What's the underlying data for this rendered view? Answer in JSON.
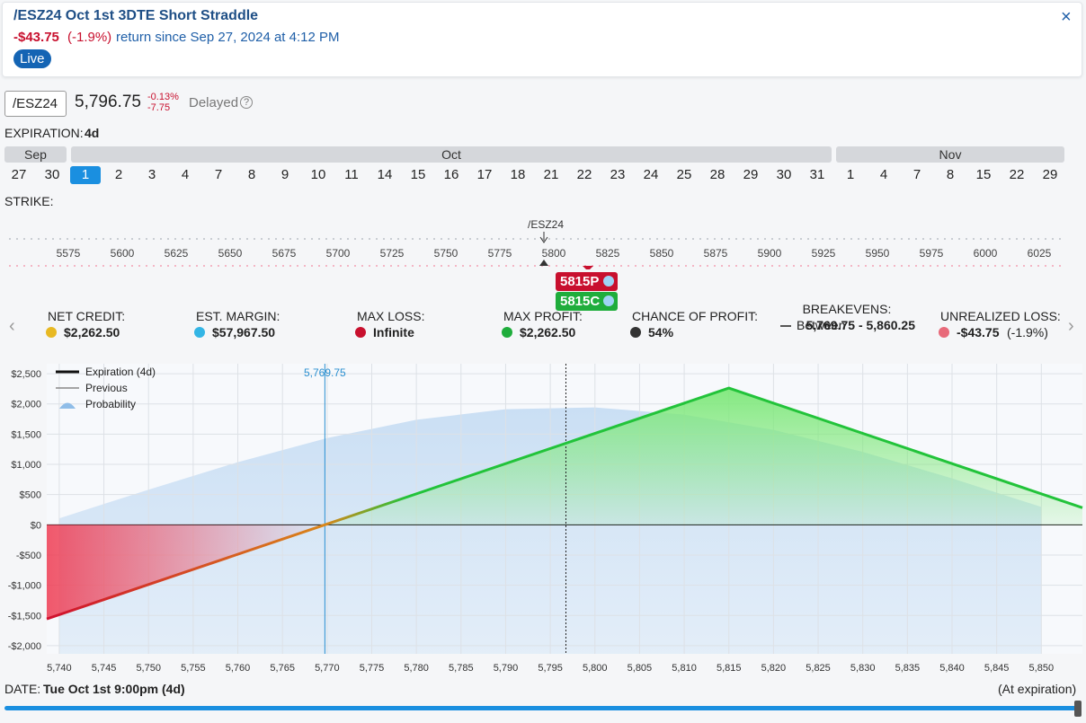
{
  "header": {
    "title": "/ESZ24 Oct 1st 3DTE Short Straddle",
    "return": "-$43.75",
    "return_pct": "(-1.9%)",
    "return_text": "return since Sep 27, 2024 at 4:12 PM",
    "status": "Live",
    "close": "×"
  },
  "quote": {
    "symbol": "/ESZ24",
    "price": "5,796.75",
    "change_pct": "-0.13%",
    "change": "-7.75",
    "delay": "Delayed",
    "help": "?"
  },
  "expiration": {
    "label": "EXPIRATION:",
    "value": "4d",
    "months": [
      {
        "name": "Sep",
        "dates": [
          "27",
          "30"
        ]
      },
      {
        "name": "Oct",
        "dates": [
          "1",
          "2",
          "3",
          "4",
          "7",
          "8",
          "9",
          "10",
          "11",
          "14",
          "15",
          "16",
          "17",
          "18",
          "21",
          "22",
          "23",
          "24",
          "25",
          "28",
          "29",
          "30",
          "31"
        ]
      },
      {
        "name": "Nov",
        "dates": [
          "1",
          "4",
          "7",
          "8",
          "15",
          "22",
          "29"
        ]
      }
    ]
  },
  "strike": {
    "label": "STRIKE:",
    "ticks": [
      "5575",
      "5600",
      "5625",
      "5650",
      "5675",
      "5700",
      "5725",
      "5750",
      "5775",
      "5800",
      "5825",
      "5850",
      "5875",
      "5900",
      "5925",
      "5950",
      "5975",
      "6000",
      "6025"
    ],
    "underlying": "/ESZ24",
    "legs": [
      "5815P",
      "5815C"
    ]
  },
  "stats": [
    {
      "label": "NET CREDIT:",
      "value": "$2,262.50"
    },
    {
      "label": "EST. MARGIN:",
      "value": "$57,967.50"
    },
    {
      "label": "MAX LOSS:",
      "value": "Infinite"
    },
    {
      "label": "MAX PROFIT:",
      "value": "$2,262.50"
    },
    {
      "label": "CHANCE OF PROFIT:",
      "value": "54%"
    },
    {
      "label": "BREAKEVENS:",
      "prefix": "Between",
      "value": "5,769.75 - 5,860.25"
    },
    {
      "label": "UNREALIZED LOSS:",
      "value": "-$43.75",
      "suffix": "(-1.9%)"
    }
  ],
  "chart_data": {
    "type": "line",
    "series": [
      {
        "name": "Expiration (4d)",
        "color": "#22c33a",
        "x": [
          5738.6,
          5769.75,
          5815,
          5854.6
        ],
        "values": [
          -1557.5,
          0,
          2262.5,
          282.5
        ]
      },
      {
        "name": "Previous",
        "color": "#888888",
        "x": [],
        "values": []
      },
      {
        "name": "Probability",
        "type": "area",
        "color": "#8fbde8",
        "x": [
          5740,
          5750,
          5760,
          5770,
          5780,
          5790,
          5800,
          5810,
          5820,
          5830,
          5840,
          5850
        ],
        "values": [
          108,
          581,
          1036,
          1435,
          1738,
          1913,
          1943,
          1823,
          1570,
          1206,
          769,
          296
        ]
      }
    ],
    "markers": [
      {
        "label": "5,769.75",
        "x": 5769.75,
        "color": "#2a8fd0"
      },
      {
        "x": 5796.75,
        "color": "#222222"
      }
    ],
    "xlim": [
      5738.6,
      5854.6
    ],
    "ylim": [
      -2135,
      2665
    ],
    "xticks": [
      {
        "value": 5740,
        "label": "5,740"
      },
      {
        "value": 5745,
        "label": "5,745"
      },
      {
        "value": 5750,
        "label": "5,750"
      },
      {
        "value": 5755,
        "label": "5,755"
      },
      {
        "value": 5760,
        "label": "5,760"
      },
      {
        "value": 5765,
        "label": "5,765"
      },
      {
        "value": 5770,
        "label": "5,770"
      },
      {
        "value": 5775,
        "label": "5,775"
      },
      {
        "value": 5780,
        "label": "5,780"
      },
      {
        "value": 5785,
        "label": "5,785"
      },
      {
        "value": 5790,
        "label": "5,790"
      },
      {
        "value": 5795,
        "label": "5,795"
      },
      {
        "value": 5800,
        "label": "5,800"
      },
      {
        "value": 5805,
        "label": "5,805"
      },
      {
        "value": 5810,
        "label": "5,810"
      },
      {
        "value": 5815,
        "label": "5,815"
      },
      {
        "value": 5820,
        "label": "5,820"
      },
      {
        "value": 5825,
        "label": "5,825"
      },
      {
        "value": 5830,
        "label": "5,830"
      },
      {
        "value": 5835,
        "label": "5,835"
      },
      {
        "value": 5840,
        "label": "5,840"
      },
      {
        "value": 5845,
        "label": "5,845"
      },
      {
        "value": 5850,
        "label": "5,850"
      }
    ],
    "yticks": [
      {
        "value": -2000,
        "label": "-$2,000"
      },
      {
        "value": -1500,
        "label": "-$1,500"
      },
      {
        "value": -1000,
        "label": "-$1,000"
      },
      {
        "value": -500,
        "label": "-$500"
      },
      {
        "value": 0,
        "label": "$0"
      },
      {
        "value": 500,
        "label": "$500"
      },
      {
        "value": 1000,
        "label": "$1,000"
      },
      {
        "value": 1500,
        "label": "$1,500"
      },
      {
        "value": 2000,
        "label": "$2,000"
      },
      {
        "value": 2500,
        "label": "$2,500"
      }
    ],
    "grid": true
  },
  "footer": {
    "date_label": "DATE:",
    "date": "Tue Oct 1st 9:00pm (4d)",
    "mode": "(At expiration)"
  }
}
